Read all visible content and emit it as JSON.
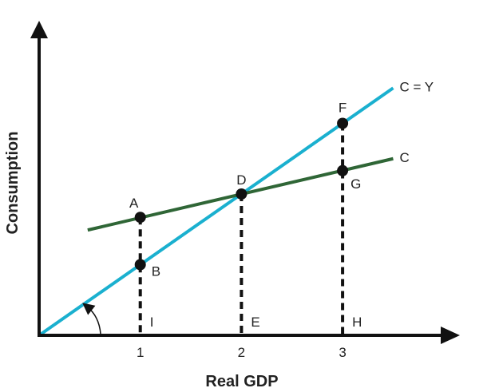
{
  "diagram": {
    "x_axis_title": "Real GDP",
    "y_axis_title": "Consumption",
    "x_ticks": [
      "1",
      "2",
      "3"
    ],
    "lines": [
      {
        "label": "C = Y",
        "color": "#1ab0cf",
        "from": [
          0,
          0
        ],
        "to": [
          3.5,
          3.5
        ]
      },
      {
        "label": "C",
        "color": "#2f6636",
        "from": [
          0.48,
          1.49
        ],
        "to": [
          3.5,
          2.5
        ]
      }
    ],
    "points": [
      {
        "label": "A",
        "x": 1,
        "y": 1.67
      },
      {
        "label": "B",
        "x": 1,
        "y": 1
      },
      {
        "label": "D",
        "x": 2,
        "y": 2
      },
      {
        "label": "F",
        "x": 3,
        "y": 3
      },
      {
        "label": "G",
        "x": 3,
        "y": 2.33
      }
    ],
    "foot_labels": [
      {
        "label": "I",
        "x": 1
      },
      {
        "label": "E",
        "x": 2
      },
      {
        "label": "H",
        "x": 3
      }
    ]
  }
}
